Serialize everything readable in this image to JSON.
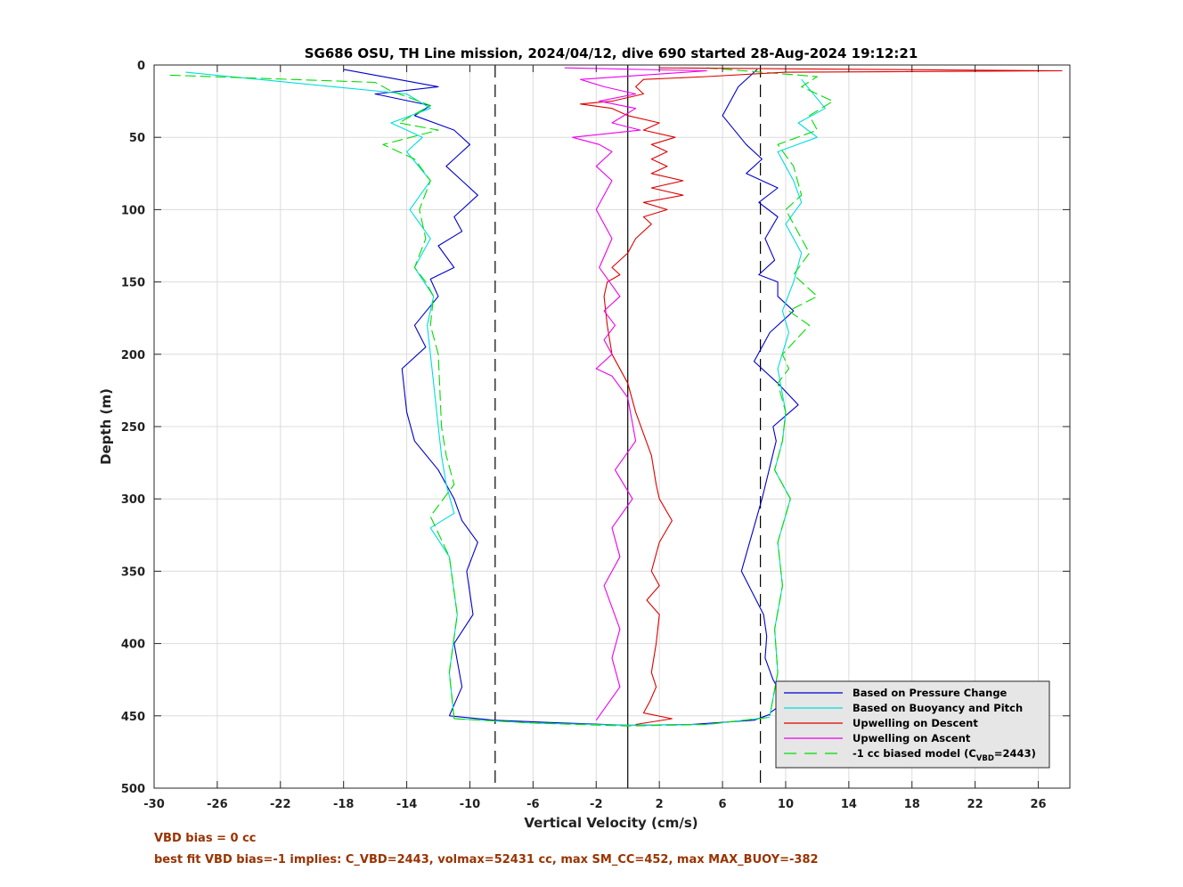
{
  "chart_data": {
    "type": "line",
    "title": "SG686 OSU, TH Line mission, 2024/04/12, dive 690 started 28-Aug-2024 19:12:21",
    "xlabel": "Vertical Velocity (cm/s)",
    "ylabel": "Depth (m)",
    "xlim": [
      -30,
      28
    ],
    "ylim": [
      0,
      500
    ],
    "y_reversed": true,
    "grid": true,
    "legend_position": "bottom-right",
    "x_ticks": [
      "-30",
      "-26",
      "-22",
      "-18",
      "-14",
      "-10",
      "-6",
      "-2",
      "2",
      "6",
      "10",
      "14",
      "18",
      "22",
      "26"
    ],
    "y_ticks": [
      "0",
      "50",
      "100",
      "150",
      "200",
      "250",
      "300",
      "350",
      "400",
      "450",
      "500"
    ],
    "reference_lines": [
      {
        "x": -8.4,
        "style": "dashed",
        "color": "#000000"
      },
      {
        "x": 0,
        "style": "solid",
        "color": "#000000"
      },
      {
        "x": 8.4,
        "style": "dashed",
        "color": "#000000"
      }
    ],
    "legend": [
      {
        "label": "Based on Pressure Change",
        "color": "#0000cc",
        "style": "solid"
      },
      {
        "label": "Based on Buoyancy and Pitch",
        "color": "#00dddd",
        "style": "solid"
      },
      {
        "label": "Upwelling on Descent",
        "color": "#dd0000",
        "style": "solid"
      },
      {
        "label": "Upwelling on Ascent",
        "color": "#ee00ee",
        "style": "solid"
      },
      {
        "label": "-1 cc biased model (C",
        "sub": "VBD",
        "suffix": "=2443)",
        "color": "#00dd00",
        "style": "dashed"
      }
    ],
    "series": [
      {
        "name": "Based on Pressure Change",
        "color": "#0000cc",
        "segments": [
          {
            "x": [
              -18,
              -12,
              -16,
              -12.5,
              -13.5,
              -11,
              -10,
              -11.5,
              -10.5,
              -9.5,
              -11,
              -10.5,
              -12,
              -11,
              -12.5,
              -12,
              -13.5,
              -12.8,
              -14.3,
              -14,
              -13.5,
              -12,
              -11,
              -10.5,
              -9.5,
              -10.2,
              -9.8,
              -11,
              -10.5,
              -11.3
            ],
            "y": [
              3,
              15,
              20,
              28,
              35,
              45,
              55,
              70,
              80,
              90,
              105,
              115,
              125,
              140,
              148,
              160,
              180,
              195,
              210,
              240,
              260,
              280,
              300,
              315,
              330,
              350,
              380,
              400,
              430,
              450
            ]
          },
          {
            "x": [
              8.2,
              7,
              6,
              7.5,
              8.5,
              7.5,
              9.5,
              8.3,
              9.5,
              8.7,
              9.3,
              8.3,
              9.5,
              9.5,
              10.5,
              9,
              8,
              9.5,
              10.8,
              9.2,
              9.4,
              8.5,
              7.2,
              8.6,
              8.8,
              8.7,
              9.2,
              10,
              9
            ],
            "y": [
              3,
              15,
              35,
              55,
              65,
              75,
              85,
              95,
              105,
              120,
              135,
              145,
              150,
              160,
              170,
              185,
              205,
              220,
              235,
              250,
              260,
              300,
              350,
              380,
              395,
              410,
              425,
              440,
              448
            ]
          },
          {
            "x": [
              -11.3,
              -8.5,
              -4,
              0,
              4,
              8,
              9
            ],
            "y": [
              450,
              453,
              455,
              456.5,
              456,
              453,
              449
            ]
          }
        ]
      },
      {
        "name": "Based on Buoyancy and Pitch",
        "color": "#00dddd",
        "segments": [
          {
            "x": [
              -28,
              -14,
              -12.5,
              -15,
              -13,
              -14,
              -12.5,
              -13.8,
              -12.5,
              -13.5,
              -12.3,
              -12.7,
              -12.5,
              -12,
              -11.8,
              -11.5,
              -11,
              -12.5,
              -11.3,
              -10.8,
              -11.3,
              -11
            ],
            "y": [
              5,
              20,
              30,
              40,
              50,
              60,
              80,
              100,
              120,
              140,
              160,
              180,
              200,
              250,
              270,
              290,
              310,
              320,
              340,
              380,
              420,
              452
            ]
          },
          {
            "x": [
              11,
              12.5,
              10.8,
              12,
              9.5,
              10.5,
              11,
              10,
              11,
              10.5,
              9.8,
              10.2,
              9.5,
              10,
              9.8,
              9.3,
              10.3,
              9.5,
              9.8,
              9.3,
              9.5,
              9
            ],
            "y": [
              10,
              30,
              40,
              50,
              60,
              80,
              95,
              110,
              130,
              150,
              170,
              185,
              210,
              240,
              260,
              280,
              300,
              330,
              360,
              390,
              420,
              450
            ]
          },
          {
            "x": [
              -11,
              -6,
              0,
              5,
              9
            ],
            "y": [
              452,
              455,
              456.5,
              456,
              451
            ]
          }
        ]
      },
      {
        "name": "-1 cc biased model (C_VBD=2443)",
        "color": "#00dd00",
        "dashed": true,
        "segments": [
          {
            "x": [
              -29,
              -16,
              -15,
              -12.5,
              -14.5,
              -12,
              -15.5,
              -13.5,
              -12.5,
              -13.2,
              -12.8,
              -13.5,
              -12.8,
              -12.3,
              -12.5,
              -12,
              -11.8,
              -11.5,
              -11,
              -12.5,
              -11.3,
              -10.8,
              -11.3,
              -11
            ],
            "y": [
              7,
              12,
              18,
              28,
              40,
              45,
              55,
              65,
              80,
              100,
              120,
              140,
              150,
              160,
              180,
              200,
              250,
              270,
              290,
              312,
              340,
              380,
              420,
              452
            ]
          },
          {
            "x": [
              5,
              12,
              11,
              13,
              11.5,
              12,
              9.5,
              10.5,
              11,
              10,
              11.5,
              10.5,
              12,
              10.2,
              11.5,
              9.8,
              10.2,
              9.5,
              10,
              9.8,
              9.3,
              10.3,
              9.5,
              9.8,
              9.3,
              9.5,
              9
            ],
            "y": [
              2,
              8,
              15,
              25,
              35,
              45,
              55,
              70,
              90,
              100,
              130,
              145,
              160,
              170,
              180,
              200,
              210,
              220,
              240,
              260,
              280,
              300,
              330,
              360,
              390,
              420,
              450
            ]
          },
          {
            "x": [
              -11,
              -6,
              0,
              5,
              9
            ],
            "y": [
              452,
              455,
              457,
              456,
              451
            ]
          }
        ]
      },
      {
        "name": "Upwelling on Descent",
        "color": "#dd0000",
        "segments": [
          {
            "x": [
              2,
              27.5,
              10,
              5,
              1,
              0.5,
              1,
              -1,
              -3,
              -1,
              0,
              2,
              1,
              3,
              1.5,
              2.5,
              1.5,
              2.5,
              1.5,
              3.5,
              1.5,
              3.5,
              1,
              2.5,
              1,
              1.5,
              0.5,
              0,
              -1,
              -0.5,
              -1.3,
              -1.5,
              -1.3,
              -1,
              0,
              0.5,
              1,
              1.5,
              1.8,
              2,
              2.8,
              2,
              1.5,
              2,
              1.2,
              2,
              1.8,
              1.5,
              1.8,
              1.4,
              1,
              2.8,
              0.5
            ],
            "y": [
              2,
              4,
              5,
              8,
              10,
              15,
              20,
              25,
              27,
              30,
              35,
              40,
              45,
              50,
              55,
              60,
              65,
              70,
              75,
              80,
              85,
              90,
              95,
              100,
              105,
              110,
              120,
              130,
              140,
              145,
              150,
              160,
              180,
              200,
              220,
              240,
              255,
              270,
              290,
              300,
              315,
              330,
              350,
              360,
              370,
              380,
              400,
              420,
              430,
              440,
              448,
              452,
              456
            ]
          }
        ]
      },
      {
        "name": "Upwelling on Ascent",
        "color": "#ee00ee",
        "segments": [
          {
            "x": [
              -4,
              5,
              -3,
              -1.5,
              0.5,
              -1.8,
              0.5,
              -1,
              0.8,
              -3.5,
              -1.8,
              -1,
              -2,
              -1,
              -2,
              -1,
              -1.8,
              -0.5,
              -1.5,
              -0.8,
              -1.5,
              -1,
              -2,
              -1,
              0,
              0.5,
              -0.8,
              0.3,
              -1,
              -0.5,
              -1.5,
              -0.5,
              -1,
              -0.5,
              -2
            ],
            "y": [
              2,
              4,
              10,
              15,
              20,
              25,
              30,
              40,
              45,
              50,
              55,
              60,
              70,
              80,
              100,
              120,
              140,
              160,
              170,
              180,
              190,
              200,
              210,
              215,
              230,
              260,
              280,
              300,
              320,
              340,
              360,
              390,
              410,
              430,
              453
            ]
          }
        ]
      }
    ]
  },
  "notes": {
    "vbd_bias": "VBD bias = 0 cc",
    "best_fit": "best fit VBD bias=-1 implies: C_VBD=2443, volmax=52431 cc, max SM_CC=452, max MAX_BUOY=-382"
  }
}
